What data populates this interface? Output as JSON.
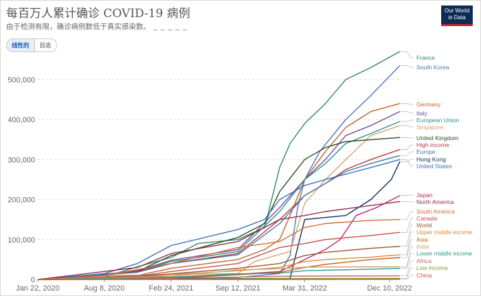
{
  "header": {
    "title": "每百万人累计确诊 COVID-19 病例",
    "subtitle": "由于检测有限，确诊病例数低于真实感染数。",
    "subtitle_dashes": "_ _ _ _ _",
    "logo_line1": "Our World",
    "logo_line2": "in Data"
  },
  "toggle": {
    "linear": "线性的",
    "log": "日志"
  },
  "chart_data": {
    "type": "line",
    "title": "每百万人累计确诊 COVID-19 病例",
    "x_labels": [
      "Jan 22, 2020",
      "Aug 8, 2020",
      "Feb 24, 2021",
      "Sep 12, 2021",
      "Mar 31, 2022",
      "Dec 10, 2022"
    ],
    "y_ticks": [
      0,
      100000,
      200000,
      300000,
      400000,
      500000
    ],
    "y_tick_labels": [
      "0",
      "100,000",
      "200,000",
      "300,000",
      "400,000",
      "500,000"
    ],
    "ylim": [
      0,
      570000
    ],
    "x_range": [
      "2020-01-22",
      "2023-01-10"
    ],
    "series": [
      {
        "name": "France",
        "color": "#2e8b57",
        "values": [
          [
            "2020-01-22",
            0
          ],
          [
            "2020-04-15",
            3000
          ],
          [
            "2020-08-08",
            6000
          ],
          [
            "2020-11-15",
            32000
          ],
          [
            "2021-02-24",
            55000
          ],
          [
            "2021-05-15",
            90000
          ],
          [
            "2021-09-12",
            100000
          ],
          [
            "2021-12-01",
            130000
          ],
          [
            "2022-01-15",
            280000
          ],
          [
            "2022-02-15",
            340000
          ],
          [
            "2022-03-31",
            390000
          ],
          [
            "2022-06-01",
            440000
          ],
          [
            "2022-08-01",
            500000
          ],
          [
            "2022-10-15",
            530000
          ],
          [
            "2023-01-10",
            570000
          ]
        ]
      },
      {
        "name": "South Korea",
        "color": "#4a78b5",
        "values": [
          [
            "2020-01-22",
            0
          ],
          [
            "2021-09-12",
            5000
          ],
          [
            "2022-01-15",
            15000
          ],
          [
            "2022-02-15",
            60000
          ],
          [
            "2022-03-10",
            180000
          ],
          [
            "2022-03-31",
            250000
          ],
          [
            "2022-05-15",
            320000
          ],
          [
            "2022-08-01",
            400000
          ],
          [
            "2022-10-15",
            460000
          ],
          [
            "2023-01-10",
            535000
          ]
        ]
      },
      {
        "name": "Germany",
        "color": "#c0632b",
        "values": [
          [
            "2020-01-22",
            0
          ],
          [
            "2020-11-15",
            10000
          ],
          [
            "2021-02-24",
            28000
          ],
          [
            "2021-09-12",
            50000
          ],
          [
            "2021-12-01",
            75000
          ],
          [
            "2022-01-15",
            100000
          ],
          [
            "2022-02-15",
            160000
          ],
          [
            "2022-03-31",
            250000
          ],
          [
            "2022-06-01",
            320000
          ],
          [
            "2022-08-01",
            380000
          ],
          [
            "2022-10-15",
            420000
          ],
          [
            "2023-01-10",
            440000
          ]
        ]
      },
      {
        "name": "Italy",
        "color": "#6b4a9e",
        "values": [
          [
            "2020-01-22",
            0
          ],
          [
            "2020-04-15",
            3000
          ],
          [
            "2020-11-15",
            22000
          ],
          [
            "2021-02-24",
            48000
          ],
          [
            "2021-09-12",
            75000
          ],
          [
            "2022-01-15",
            180000
          ],
          [
            "2022-03-31",
            250000
          ],
          [
            "2022-06-01",
            300000
          ],
          [
            "2022-08-01",
            360000
          ],
          [
            "2022-10-15",
            385000
          ],
          [
            "2023-01-10",
            420000
          ]
        ]
      },
      {
        "name": "European Union",
        "color": "#2a8c8c",
        "values": [
          [
            "2020-01-22",
            0
          ],
          [
            "2020-11-15",
            20000
          ],
          [
            "2021-02-24",
            45000
          ],
          [
            "2021-09-12",
            70000
          ],
          [
            "2022-01-15",
            170000
          ],
          [
            "2022-03-31",
            250000
          ],
          [
            "2022-06-01",
            290000
          ],
          [
            "2022-08-01",
            340000
          ],
          [
            "2022-10-15",
            365000
          ],
          [
            "2023-01-10",
            395000
          ]
        ]
      },
      {
        "name": "Singapore",
        "color": "#d4a373",
        "values": [
          [
            "2020-01-22",
            0
          ],
          [
            "2020-08-08",
            10000
          ],
          [
            "2021-09-12",
            15000
          ],
          [
            "2021-11-01",
            45000
          ],
          [
            "2022-02-15",
            70000
          ],
          [
            "2022-03-31",
            190000
          ],
          [
            "2022-06-01",
            250000
          ],
          [
            "2022-08-01",
            300000
          ],
          [
            "2022-10-15",
            360000
          ],
          [
            "2023-01-10",
            385000
          ]
        ]
      },
      {
        "name": "United Kingdom",
        "color": "#2b4d1e",
        "values": [
          [
            "2020-01-22",
            0
          ],
          [
            "2020-11-15",
            20000
          ],
          [
            "2021-02-24",
            60000
          ],
          [
            "2021-09-12",
            105000
          ],
          [
            "2021-12-01",
            140000
          ],
          [
            "2022-01-15",
            220000
          ],
          [
            "2022-03-31",
            300000
          ],
          [
            "2022-06-01",
            330000
          ],
          [
            "2022-08-01",
            345000
          ],
          [
            "2023-01-10",
            355000
          ]
        ]
      },
      {
        "name": "High income",
        "color": "#b83b3b",
        "values": [
          [
            "2020-01-22",
            0
          ],
          [
            "2020-11-15",
            20000
          ],
          [
            "2021-02-24",
            40000
          ],
          [
            "2021-09-12",
            65000
          ],
          [
            "2022-01-15",
            150000
          ],
          [
            "2022-03-31",
            210000
          ],
          [
            "2022-06-01",
            240000
          ],
          [
            "2022-08-01",
            275000
          ],
          [
            "2022-10-15",
            300000
          ],
          [
            "2023-01-10",
            325000
          ]
        ]
      },
      {
        "name": "Europe",
        "color": "#3f75a8",
        "values": [
          [
            "2020-01-22",
            0
          ],
          [
            "2020-11-15",
            18000
          ],
          [
            "2021-02-24",
            40000
          ],
          [
            "2021-09-12",
            62000
          ],
          [
            "2022-01-15",
            140000
          ],
          [
            "2022-03-31",
            210000
          ],
          [
            "2022-06-01",
            240000
          ],
          [
            "2022-08-01",
            270000
          ],
          [
            "2022-10-15",
            290000
          ],
          [
            "2023-01-10",
            310000
          ]
        ]
      },
      {
        "name": "Hong Kong",
        "color": "#0d2f5c",
        "values": [
          [
            "2020-01-22",
            0
          ],
          [
            "2021-09-12",
            2000
          ],
          [
            "2022-02-15",
            3000
          ],
          [
            "2022-03-10",
            80000
          ],
          [
            "2022-03-31",
            150000
          ],
          [
            "2022-08-01",
            160000
          ],
          [
            "2022-10-15",
            200000
          ],
          [
            "2022-12-15",
            250000
          ],
          [
            "2023-01-10",
            295000
          ]
        ]
      },
      {
        "name": "United States",
        "color": "#3b73b9",
        "values": [
          [
            "2020-01-22",
            0
          ],
          [
            "2020-08-08",
            15000
          ],
          [
            "2020-11-15",
            40000
          ],
          [
            "2021-02-24",
            85000
          ],
          [
            "2021-09-12",
            125000
          ],
          [
            "2021-12-01",
            150000
          ],
          [
            "2022-01-15",
            200000
          ],
          [
            "2022-03-31",
            235000
          ],
          [
            "2022-06-01",
            250000
          ],
          [
            "2022-10-15",
            280000
          ],
          [
            "2023-01-10",
            300000
          ]
        ]
      },
      {
        "name": "Japan",
        "color": "#c0256a",
        "values": [
          [
            "2020-01-22",
            0
          ],
          [
            "2021-02-24",
            3500
          ],
          [
            "2021-09-12",
            13000
          ],
          [
            "2022-01-15",
            20000
          ],
          [
            "2022-03-31",
            50000
          ],
          [
            "2022-06-01",
            75000
          ],
          [
            "2022-07-15",
            100000
          ],
          [
            "2022-09-01",
            160000
          ],
          [
            "2022-11-01",
            180000
          ],
          [
            "2023-01-10",
            210000
          ]
        ]
      },
      {
        "name": "North America",
        "color": "#8a2e4e",
        "values": [
          [
            "2020-01-22",
            0
          ],
          [
            "2020-11-15",
            30000
          ],
          [
            "2021-02-24",
            65000
          ],
          [
            "2021-09-12",
            95000
          ],
          [
            "2022-01-15",
            150000
          ],
          [
            "2022-03-31",
            160000
          ],
          [
            "2022-06-01",
            170000
          ],
          [
            "2022-10-15",
            185000
          ],
          [
            "2023-01-10",
            195000
          ]
        ]
      },
      {
        "name": "South America",
        "color": "#d66a2e",
        "values": [
          [
            "2020-01-22",
            0
          ],
          [
            "2020-08-08",
            10000
          ],
          [
            "2021-02-24",
            40000
          ],
          [
            "2021-09-12",
            80000
          ],
          [
            "2022-01-15",
            95000
          ],
          [
            "2022-03-31",
            130000
          ],
          [
            "2022-06-01",
            140000
          ],
          [
            "2022-10-15",
            148000
          ],
          [
            "2023-01-10",
            150000
          ]
        ]
      },
      {
        "name": "Canada",
        "color": "#c0504d",
        "values": [
          [
            "2020-01-22",
            0
          ],
          [
            "2020-11-15",
            8000
          ],
          [
            "2021-02-24",
            20000
          ],
          [
            "2021-09-12",
            40000
          ],
          [
            "2022-01-15",
            80000
          ],
          [
            "2022-03-31",
            90000
          ],
          [
            "2022-06-01",
            100000
          ],
          [
            "2022-10-15",
            110000
          ],
          [
            "2023-01-10",
            118000
          ]
        ]
      },
      {
        "name": "World",
        "color": "#a0522d",
        "values": [
          [
            "2020-01-22",
            0
          ],
          [
            "2020-11-15",
            8000
          ],
          [
            "2021-02-24",
            14000
          ],
          [
            "2021-09-12",
            28000
          ],
          [
            "2022-01-15",
            40000
          ],
          [
            "2022-03-31",
            60000
          ],
          [
            "2022-06-01",
            68000
          ],
          [
            "2022-10-15",
            78000
          ],
          [
            "2023-01-10",
            83000
          ]
        ]
      },
      {
        "name": "Upper middle income",
        "color": "#d98a3b",
        "values": [
          [
            "2020-01-22",
            0
          ],
          [
            "2020-11-15",
            6000
          ],
          [
            "2021-02-24",
            12000
          ],
          [
            "2021-09-12",
            22000
          ],
          [
            "2022-01-15",
            30000
          ],
          [
            "2022-03-31",
            45000
          ],
          [
            "2022-06-01",
            50000
          ],
          [
            "2022-10-15",
            56000
          ],
          [
            "2023-01-10",
            62000
          ]
        ]
      },
      {
        "name": "Asia",
        "color": "#b5651d",
        "values": [
          [
            "2020-01-22",
            0
          ],
          [
            "2021-02-24",
            3000
          ],
          [
            "2021-09-12",
            12000
          ],
          [
            "2022-01-15",
            18000
          ],
          [
            "2022-03-31",
            30000
          ],
          [
            "2022-06-01",
            38000
          ],
          [
            "2022-10-15",
            50000
          ],
          [
            "2023-01-10",
            55000
          ]
        ]
      },
      {
        "name": "India",
        "color": "#d2a06b",
        "values": [
          [
            "2020-01-22",
            0
          ],
          [
            "2020-11-15",
            6000
          ],
          [
            "2021-02-24",
            8000
          ],
          [
            "2021-09-12",
            24000
          ],
          [
            "2022-01-15",
            27000
          ],
          [
            "2022-03-31",
            31000
          ],
          [
            "2022-10-15",
            31800
          ],
          [
            "2023-01-10",
            32000
          ]
        ]
      },
      {
        "name": "Lower middle income",
        "color": "#2a9d8f",
        "values": [
          [
            "2020-01-22",
            0
          ],
          [
            "2020-11-15",
            4000
          ],
          [
            "2021-02-24",
            6000
          ],
          [
            "2021-09-12",
            14000
          ],
          [
            "2022-01-15",
            16000
          ],
          [
            "2022-03-31",
            22000
          ],
          [
            "2022-10-15",
            26000
          ],
          [
            "2023-01-10",
            28000
          ]
        ]
      },
      {
        "name": "Africa",
        "color": "#b86b6b",
        "values": [
          [
            "2020-01-22",
            0
          ],
          [
            "2020-11-15",
            1500
          ],
          [
            "2021-02-24",
            3000
          ],
          [
            "2021-09-12",
            6000
          ],
          [
            "2022-01-15",
            8000
          ],
          [
            "2022-03-31",
            8500
          ],
          [
            "2022-10-15",
            9000
          ],
          [
            "2023-01-10",
            9200
          ]
        ]
      },
      {
        "name": "Low income",
        "color": "#7a9e3c",
        "values": [
          [
            "2020-01-22",
            0
          ],
          [
            "2021-02-24",
            500
          ],
          [
            "2021-09-12",
            1500
          ],
          [
            "2022-03-31",
            2500
          ],
          [
            "2023-01-10",
            3000
          ]
        ]
      },
      {
        "name": "China",
        "color": "#d9531e",
        "values": [
          [
            "2020-01-22",
            0
          ],
          [
            "2022-03-31",
            100
          ],
          [
            "2022-10-15",
            500
          ],
          [
            "2023-01-10",
            1000
          ]
        ]
      }
    ]
  }
}
